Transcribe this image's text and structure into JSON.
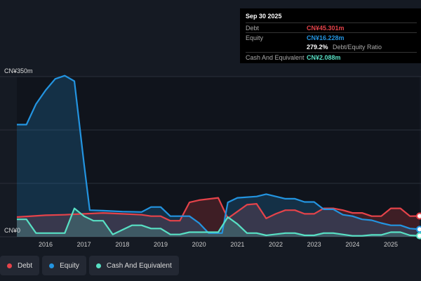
{
  "tooltip": {
    "date": "Sep 30 2025",
    "debt_label": "Debt",
    "debt_value": "CN¥45.301m",
    "equity_label": "Equity",
    "equity_value": "CN¥16.228m",
    "ratio_value": "279.2%",
    "ratio_label": "Debt/Equity Ratio",
    "cash_label": "Cash And Equivalent",
    "cash_value": "CN¥2.088m"
  },
  "legend": [
    {
      "label": "Debt",
      "color": "#e5434a"
    },
    {
      "label": "Equity",
      "color": "#2394e0"
    },
    {
      "label": "Cash And Equivalent",
      "color": "#58e0c4"
    }
  ],
  "chart_data": {
    "type": "area",
    "ylim": [
      0,
      350
    ],
    "y_tick_labels": [
      "CN¥0",
      "CN¥350m"
    ],
    "x_tick_labels": [
      "2016",
      "2017",
      "2018",
      "2019",
      "2020",
      "2021",
      "2022",
      "2023",
      "2024",
      "2025"
    ],
    "xlim": [
      2015.25,
      2025.75
    ],
    "grid": true,
    "legend_position": "bottom-left",
    "series": [
      {
        "name": "Debt",
        "color": "#e5434a",
        "points": [
          [
            2015.25,
            43
          ],
          [
            2016,
            47
          ],
          [
            2016.5,
            48
          ],
          [
            2017,
            50
          ],
          [
            2017.5,
            52
          ],
          [
            2018,
            50
          ],
          [
            2018.5,
            48
          ],
          [
            2018.75,
            45
          ],
          [
            2019,
            45
          ],
          [
            2019.25,
            35
          ],
          [
            2019.5,
            35
          ],
          [
            2019.75,
            75
          ],
          [
            2020,
            80
          ],
          [
            2020.5,
            85
          ],
          [
            2020.75,
            40
          ],
          [
            2021,
            55
          ],
          [
            2021.25,
            70
          ],
          [
            2021.5,
            72
          ],
          [
            2021.75,
            40
          ],
          [
            2022,
            50
          ],
          [
            2022.25,
            58
          ],
          [
            2022.5,
            58
          ],
          [
            2022.75,
            50
          ],
          [
            2023,
            50
          ],
          [
            2023.25,
            62
          ],
          [
            2023.5,
            62
          ],
          [
            2023.75,
            58
          ],
          [
            2024,
            52
          ],
          [
            2024.25,
            52
          ],
          [
            2024.5,
            45
          ],
          [
            2024.75,
            45
          ],
          [
            2025,
            62
          ],
          [
            2025.25,
            62
          ],
          [
            2025.5,
            45
          ],
          [
            2025.75,
            45.301
          ]
        ]
      },
      {
        "name": "Equity",
        "color": "#2394e0",
        "points": [
          [
            2015.25,
            245
          ],
          [
            2015.5,
            245
          ],
          [
            2015.75,
            290
          ],
          [
            2016,
            320
          ],
          [
            2016.25,
            345
          ],
          [
            2016.5,
            352
          ],
          [
            2016.75,
            340
          ],
          [
            2017,
            160
          ],
          [
            2017.15,
            58
          ],
          [
            2017.5,
            57
          ],
          [
            2018,
            55
          ],
          [
            2018.5,
            54
          ],
          [
            2018.75,
            65
          ],
          [
            2019,
            65
          ],
          [
            2019.25,
            45
          ],
          [
            2019.75,
            45
          ],
          [
            2020,
            30
          ],
          [
            2020.25,
            8
          ],
          [
            2020.6,
            8
          ],
          [
            2020.75,
            75
          ],
          [
            2021,
            85
          ],
          [
            2021.5,
            88
          ],
          [
            2021.75,
            93
          ],
          [
            2022.25,
            83
          ],
          [
            2022.5,
            83
          ],
          [
            2022.75,
            76
          ],
          [
            2023,
            76
          ],
          [
            2023.25,
            60
          ],
          [
            2023.5,
            60
          ],
          [
            2023.75,
            48
          ],
          [
            2024,
            45
          ],
          [
            2024.25,
            38
          ],
          [
            2024.5,
            36
          ],
          [
            2024.75,
            30
          ],
          [
            2025,
            25
          ],
          [
            2025.25,
            25
          ],
          [
            2025.5,
            18
          ],
          [
            2025.75,
            16.228
          ]
        ]
      },
      {
        "name": "Cash And Equivalent",
        "color": "#58e0c4",
        "points": [
          [
            2015.25,
            38
          ],
          [
            2015.5,
            38
          ],
          [
            2015.75,
            8
          ],
          [
            2016.5,
            8
          ],
          [
            2016.75,
            62
          ],
          [
            2017,
            45
          ],
          [
            2017.25,
            35
          ],
          [
            2017.5,
            35
          ],
          [
            2017.75,
            5
          ],
          [
            2018,
            15
          ],
          [
            2018.25,
            25
          ],
          [
            2018.5,
            25
          ],
          [
            2018.75,
            18
          ],
          [
            2019,
            18
          ],
          [
            2019.25,
            5
          ],
          [
            2019.5,
            5
          ],
          [
            2019.75,
            10
          ],
          [
            2020.5,
            10
          ],
          [
            2020.75,
            43
          ],
          [
            2021,
            28
          ],
          [
            2021.25,
            8
          ],
          [
            2021.5,
            8
          ],
          [
            2021.75,
            3
          ],
          [
            2022.25,
            8
          ],
          [
            2022.5,
            8
          ],
          [
            2022.75,
            3
          ],
          [
            2023,
            3
          ],
          [
            2023.25,
            8
          ],
          [
            2023.5,
            8
          ],
          [
            2024,
            2
          ],
          [
            2024.25,
            2
          ],
          [
            2024.5,
            4
          ],
          [
            2024.75,
            4
          ],
          [
            2025,
            10
          ],
          [
            2025.25,
            10
          ],
          [
            2025.5,
            3
          ],
          [
            2025.75,
            2.088
          ]
        ]
      }
    ]
  }
}
